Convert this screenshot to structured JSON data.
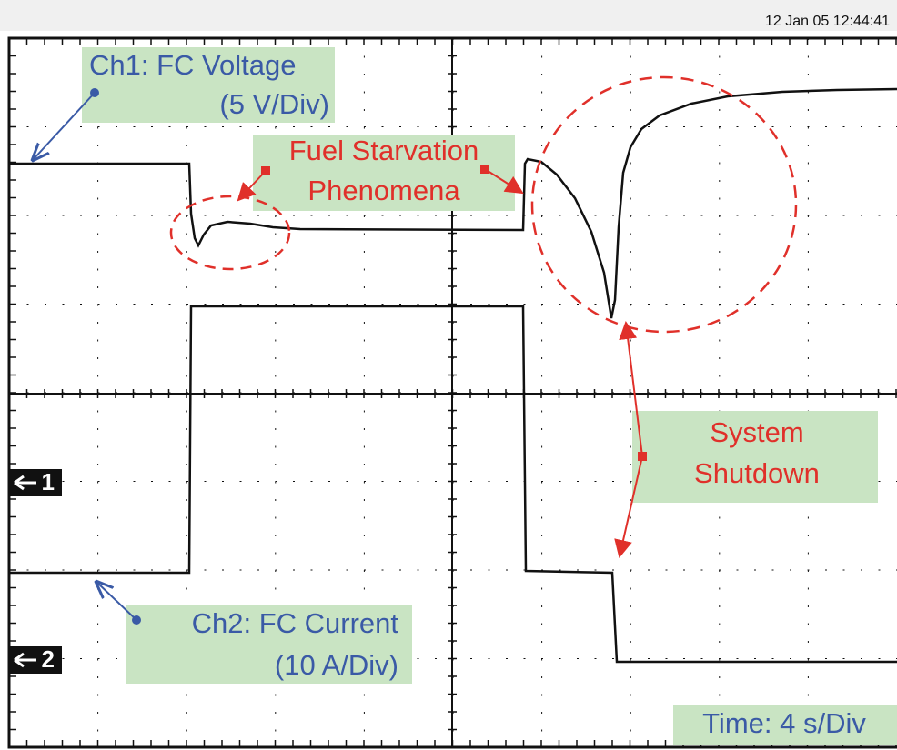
{
  "timestamp": "12 Jan 05  12:44:41",
  "ch1_label": {
    "name": "Ch1: FC Voltage",
    "scale": "(5 V/Div)"
  },
  "annotation_fuel": {
    "line1": "Fuel Starvation",
    "line2": "Phenomena"
  },
  "annotation_shutdown": {
    "line1": "System",
    "line2": "Shutdown"
  },
  "ch2_label": {
    "name": "Ch2: FC Current",
    "scale": "(10 A/Div)"
  },
  "timebase": "Time: 4 s/Div",
  "markers": [
    "1",
    "2"
  ]
}
